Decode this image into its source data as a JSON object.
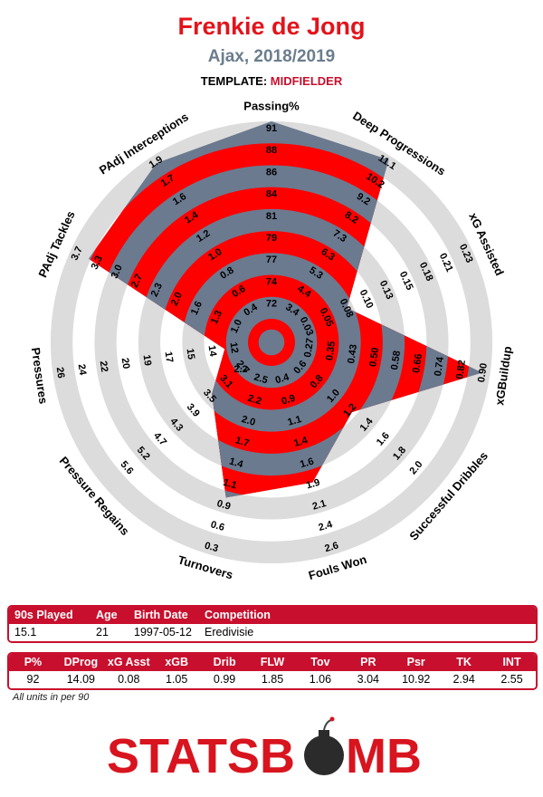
{
  "header": {
    "player_name": "Frenkie de Jong",
    "club_season": "Ajax, 2018/2019",
    "template_label": "TEMPLATE: ",
    "template_value": "MIDFIELDER"
  },
  "colors": {
    "title": "#e3131b",
    "subtitle": "#6b7d8d",
    "ring_grey": "#dcdcdc",
    "band_red": "#ff0000",
    "player_slate": "#6b7a8f",
    "table_red": "#c8102e"
  },
  "chart_data": {
    "type": "radar",
    "metrics": [
      {
        "label": "Passing%",
        "ticks": [
          "72",
          "74",
          "77",
          "79",
          "81",
          "84",
          "86",
          "88",
          "91"
        ],
        "player_fraction": 1.0
      },
      {
        "label": "Deep Progressions",
        "ticks": [
          "3.4",
          "4.4",
          "5.3",
          "6.3",
          "7.3",
          "8.2",
          "9.2",
          "10.2",
          "11.1"
        ],
        "player_fraction": 0.98
      },
      {
        "label": "xG Assisted",
        "ticks": [
          "0.03",
          "0.05",
          "0.08",
          "0.10",
          "0.13",
          "0.15",
          "0.18",
          "0.21",
          "0.23"
        ],
        "player_fraction": 0.3
      },
      {
        "label": "xGBuildup",
        "ticks": [
          "0.27",
          "0.35",
          "0.43",
          "0.50",
          "0.58",
          "0.66",
          "0.74",
          "0.82",
          "0.90"
        ],
        "player_fraction": 0.96
      },
      {
        "label": "Successful Dribbles",
        "ticks": [
          "0.6",
          "0.8",
          "1.0",
          "1.2",
          "1.4",
          "1.6",
          "1.8",
          "2.0"
        ],
        "player_fraction": 0.42
      },
      {
        "label": "Fouls Won",
        "ticks": [
          "0.4",
          "0.9",
          "1.1",
          "1.4",
          "1.6",
          "1.9",
          "2.1",
          "2.4",
          "2.6"
        ],
        "player_fraction": 0.62
      },
      {
        "label": "Turnovers",
        "ticks": [
          "2.5",
          "2.2",
          "2.0",
          "1.7",
          "1.4",
          "1.1",
          "0.9",
          "0.6",
          "0.3"
        ],
        "player_fraction": 0.7
      },
      {
        "label": "Pressure Regains",
        "ticks": [
          "2.7",
          "3.1",
          "3.5",
          "3.9",
          "4.3",
          "4.7",
          "5.2",
          "5.6"
        ],
        "player_fraction": 0.28
      },
      {
        "label": "Pressures",
        "ticks": [
          "12",
          "14",
          "15",
          "17",
          "19",
          "20",
          "22",
          "24",
          "26"
        ],
        "player_fraction": 0.12
      },
      {
        "label": "PAdj Tackles",
        "ticks": [
          "1.0",
          "1.3",
          "1.6",
          "2.0",
          "2.3",
          "2.7",
          "3.0",
          "3.3",
          "3.7"
        ],
        "player_fraction": 0.9
      },
      {
        "label": "PAdj Interceptions",
        "ticks": [
          "0.4",
          "0.6",
          "0.8",
          "1.0",
          "1.2",
          "1.4",
          "1.6",
          "1.7",
          "1.9"
        ],
        "player_fraction": 0.96
      }
    ],
    "extra_tick_labels": [
      "2.2"
    ]
  },
  "info_table": {
    "headers": [
      "90s Played",
      "Age",
      "Birth Date",
      "Competition"
    ],
    "values": [
      "15.1",
      "21",
      "1997-05-12",
      "Eredivisie"
    ]
  },
  "stats_table": {
    "headers": [
      "P%",
      "DProg",
      "xG Asst",
      "xGB",
      "Drib",
      "FLW",
      "Tov",
      "PR",
      "Psr",
      "TK",
      "INT"
    ],
    "values": [
      "92",
      "14.09",
      "0.08",
      "1.05",
      "0.99",
      "1.85",
      "1.06",
      "3.04",
      "10.92",
      "2.94",
      "2.55"
    ]
  },
  "footnote": "All units in per 90",
  "logo": {
    "text_left": "STATSB",
    "text_right": "MB",
    "icon": "bomb-icon"
  }
}
